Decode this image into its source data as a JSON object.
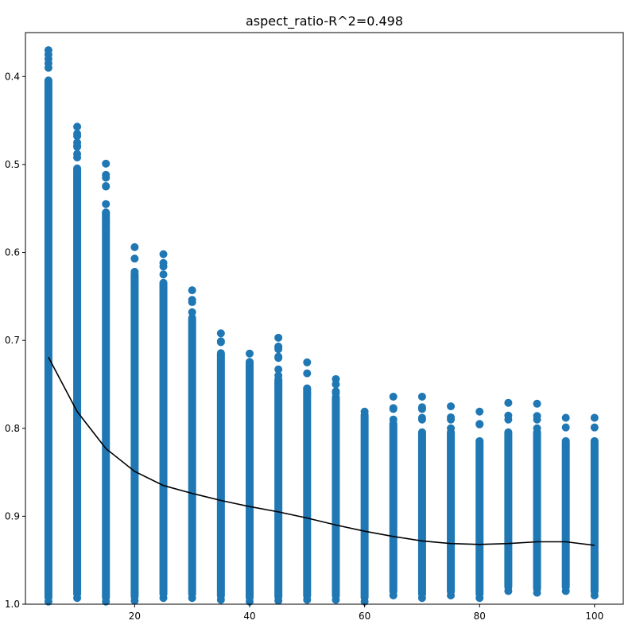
{
  "chart_data": {
    "type": "scatter",
    "title": "aspect_ratio-R^2=0.498",
    "xlabel": "",
    "ylabel": "",
    "xlim": [
      1,
      105
    ],
    "ylim": [
      1.0,
      0.35
    ],
    "y_axis_inverted": true,
    "grid": false,
    "x_ticks": [
      20,
      40,
      60,
      80,
      100
    ],
    "x_tick_labels": [
      "20",
      "40",
      "60",
      "80",
      "100"
    ],
    "y_ticks": [
      0.4,
      0.5,
      0.6,
      0.7,
      0.8,
      0.9,
      1.0
    ],
    "y_tick_labels": [
      "0.4",
      "0.5",
      "0.6",
      "0.7",
      "0.8",
      "0.9",
      "1.0"
    ],
    "colors": {
      "points": "#1f77b4",
      "line": "#000000"
    },
    "series": [
      {
        "type": "scatter",
        "x": [
          5,
          10,
          15,
          20,
          25,
          30,
          35,
          40,
          45,
          50,
          55,
          60,
          65,
          70,
          75,
          80,
          85,
          90,
          95,
          100
        ],
        "y_min": [
          0.37,
          0.457,
          0.499,
          0.594,
          0.602,
          0.643,
          0.692,
          0.715,
          0.697,
          0.725,
          0.744,
          0.781,
          0.764,
          0.764,
          0.775,
          0.781,
          0.771,
          0.772,
          0.788,
          0.788
        ],
        "y_max": [
          0.997,
          0.993,
          0.997,
          0.996,
          0.993,
          0.993,
          0.995,
          0.997,
          0.996,
          0.995,
          0.995,
          0.997,
          0.99,
          0.993,
          0.99,
          0.993,
          0.985,
          0.987,
          0.985,
          0.99
        ],
        "dense_from": [
          0.4,
          0.5,
          0.55,
          0.62,
          0.63,
          0.67,
          0.71,
          0.72,
          0.74,
          0.75,
          0.76,
          0.78,
          0.79,
          0.8,
          0.8,
          0.81,
          0.8,
          0.8,
          0.81,
          0.81
        ],
        "outliers": [
          [
            5,
            0.375
          ],
          [
            5,
            0.385
          ],
          [
            10,
            0.465
          ],
          [
            10,
            0.475
          ],
          [
            10,
            0.48
          ],
          [
            10,
            0.488
          ],
          [
            10,
            0.492
          ],
          [
            15,
            0.515
          ],
          [
            15,
            0.525
          ],
          [
            15,
            0.545
          ],
          [
            15,
            0.555
          ],
          [
            15,
            0.565
          ],
          [
            15,
            0.575
          ],
          [
            20,
            0.622
          ],
          [
            20,
            0.632
          ],
          [
            25,
            0.612
          ],
          [
            25,
            0.625
          ],
          [
            25,
            0.64
          ],
          [
            30,
            0.654
          ],
          [
            30,
            0.668
          ],
          [
            35,
            0.702
          ],
          [
            45,
            0.707
          ],
          [
            45,
            0.71
          ],
          [
            45,
            0.72
          ],
          [
            45,
            0.733
          ],
          [
            45,
            0.74
          ],
          [
            45,
            0.75
          ],
          [
            50,
            0.755
          ],
          [
            50,
            0.76
          ],
          [
            55,
            0.75
          ],
          [
            55,
            0.758
          ],
          [
            55,
            0.76
          ],
          [
            65,
            0.778
          ],
          [
            65,
            0.79
          ],
          [
            70,
            0.778
          ],
          [
            70,
            0.79
          ],
          [
            75,
            0.79
          ],
          [
            75,
            0.8
          ],
          [
            80,
            0.795
          ],
          [
            85,
            0.79
          ],
          [
            90,
            0.79
          ],
          [
            90,
            0.8
          ]
        ]
      },
      {
        "type": "line",
        "x": [
          5,
          10,
          15,
          20,
          25,
          30,
          35,
          40,
          45,
          50,
          55,
          60,
          65,
          70,
          75,
          80,
          85,
          90,
          95,
          100
        ],
        "y": [
          0.719,
          0.781,
          0.823,
          0.849,
          0.865,
          0.874,
          0.882,
          0.889,
          0.895,
          0.902,
          0.91,
          0.917,
          0.923,
          0.928,
          0.931,
          0.932,
          0.931,
          0.929,
          0.929,
          0.933
        ]
      }
    ]
  }
}
